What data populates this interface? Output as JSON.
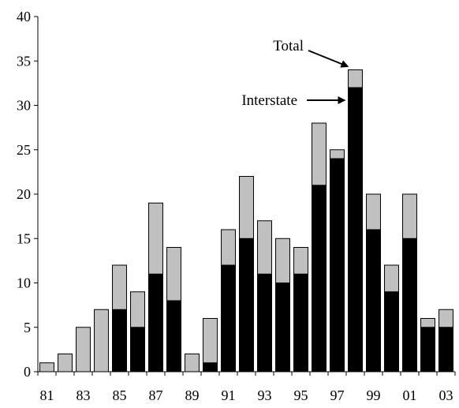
{
  "chart_data": {
    "type": "bar",
    "stacked": true,
    "title": "",
    "xlabel": "",
    "ylabel": "",
    "ylim": [
      0,
      40
    ],
    "yticks": [
      0,
      5,
      10,
      15,
      20,
      25,
      30,
      35,
      40
    ],
    "categories": [
      "81",
      "82",
      "83",
      "84",
      "85",
      "86",
      "87",
      "88",
      "89",
      "90",
      "91",
      "92",
      "93",
      "94",
      "95",
      "96",
      "97",
      "98",
      "99",
      "00",
      "01",
      "02",
      "03"
    ],
    "xtick_labels": [
      "81",
      "83",
      "85",
      "87",
      "89",
      "91",
      "93",
      "95",
      "97",
      "99",
      "01",
      "03"
    ],
    "total": [
      1,
      2,
      5,
      7,
      12,
      9,
      19,
      14,
      2,
      6,
      16,
      22,
      17,
      15,
      14,
      28,
      25,
      34,
      20,
      12,
      20,
      6,
      7
    ],
    "interstate": [
      0,
      0,
      0,
      0,
      7,
      5,
      11,
      8,
      0,
      1,
      12,
      15,
      11,
      10,
      11,
      21,
      24,
      32,
      16,
      9,
      15,
      5,
      5
    ],
    "colors": {
      "interstate": "#000000",
      "other": "#c0c0c0"
    },
    "annotations": [
      {
        "text": "Total",
        "target_category": "98",
        "target_series": "total"
      },
      {
        "text": "Interstate",
        "target_category": "98",
        "target_series": "interstate"
      }
    ],
    "grid": false,
    "legend": "none"
  }
}
